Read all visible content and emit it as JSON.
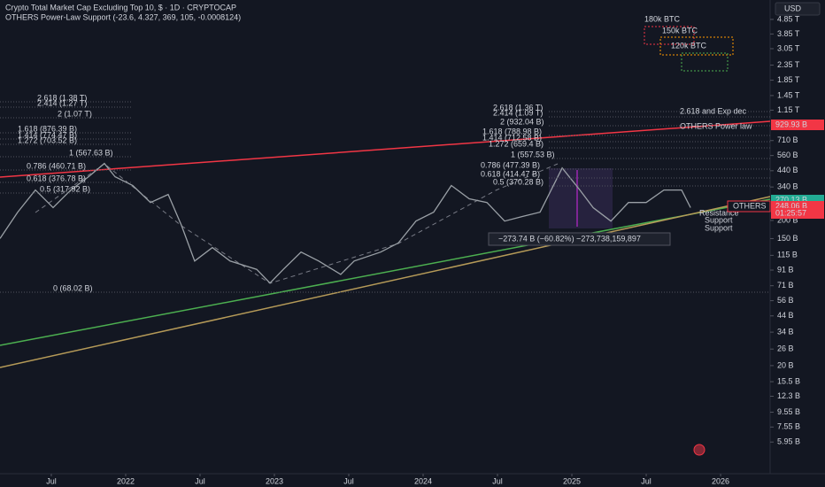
{
  "chart_data": {
    "type": "line",
    "title": "Crypto Total Market Cap Excluding Top 10, $ · 1D · CRYPTOCAP",
    "subtitle": "OTHERS Power-Law Support (-23.6, 4.327, 369, 105, -0.0008124)",
    "currency": "USD",
    "log_scale": true,
    "xlim": [
      2021.155,
      2026.333
    ],
    "ylim": [
      3.6,
      6600
    ],
    "xticks": [
      {
        "value": 2021.5,
        "label": "Jul"
      },
      2022,
      {
        "value": 2022.5,
        "label": "Jul"
      },
      2023,
      {
        "value": 2023.5,
        "label": "Jul"
      },
      2024,
      {
        "value": 2024.5,
        "label": "Jul"
      },
      2025,
      {
        "value": 2025.5,
        "label": "Jul"
      },
      2026
    ],
    "yticks": [
      {
        "value": 4850,
        "label": "4.85 T"
      },
      {
        "value": 3850,
        "label": "3.85 T"
      },
      {
        "value": 3050,
        "label": "3.05 T"
      },
      {
        "value": 2350,
        "label": "2.35 T"
      },
      {
        "value": 1850,
        "label": "1.85 T"
      },
      {
        "value": 1450,
        "label": "1.45 T"
      },
      {
        "value": 1150,
        "label": "1.15 T"
      },
      {
        "value": 710,
        "label": "710 B"
      },
      {
        "value": 560,
        "label": "560 B"
      },
      {
        "value": 440,
        "label": "440 B"
      },
      {
        "value": 340,
        "label": "340 B"
      },
      {
        "value": 200,
        "label": "200 B"
      },
      {
        "value": 150,
        "label": "150 B"
      },
      {
        "value": 115,
        "label": "115 B"
      },
      {
        "value": 91,
        "label": "91 B"
      },
      {
        "value": 71,
        "label": "71 B"
      },
      {
        "value": 56,
        "label": "56 B"
      },
      {
        "value": 44,
        "label": "44 B"
      },
      {
        "value": 34,
        "label": "34 B"
      },
      {
        "value": 26,
        "label": "26 B"
      },
      {
        "value": 20,
        "label": "20 B"
      },
      {
        "value": 15.5,
        "label": "15.5 B"
      },
      {
        "value": 12.3,
        "label": "12.3 B"
      },
      {
        "value": 9.55,
        "label": "9.55 B"
      },
      {
        "value": 7.55,
        "label": "7.55 B"
      },
      {
        "value": 5.95,
        "label": "5.95 B"
      }
    ],
    "series": [
      {
        "name": "OTHERS",
        "color": "#9aa0a6",
        "x": [
          2021.155,
          2021.274,
          2021.393,
          2021.512,
          2021.631,
          2021.75,
          2021.857,
          2021.929,
          2022.048,
          2022.167,
          2022.286,
          2022.375,
          2022.464,
          2022.583,
          2022.702,
          2022.881,
          2022.97,
          2023.06,
          2023.179,
          2023.298,
          2023.446,
          2023.536,
          2023.714,
          2023.833,
          2023.952,
          2024.071,
          2024.19,
          2024.31,
          2024.429,
          2024.548,
          2024.667,
          2024.786,
          2024.935,
          2025.054,
          2025.143,
          2025.262,
          2025.381,
          2025.5,
          2025.619,
          2025.738,
          2025.798
        ],
        "values": [
          150,
          228,
          324,
          245,
          324,
          400,
          494,
          400,
          348,
          266,
          302,
          185,
          105,
          130,
          105,
          92,
          74,
          92,
          121,
          105,
          85,
          105,
          121,
          140,
          198,
          228,
          348,
          282,
          266,
          198,
          213,
          228,
          460,
          324,
          245,
          198,
          266,
          266,
          324,
          324,
          245
        ]
      }
    ],
    "price_labels": [
      {
        "label": "929.93 B",
        "color": "#f23645"
      },
      {
        "label": "270.13 B",
        "color": "#22ab94"
      },
      {
        "label": "248.06 B",
        "color": "#f23645"
      },
      {
        "label": "01:25:57",
        "color": "#f23645"
      }
    ],
    "symbol_label": "OTHERS",
    "annotations": [
      "2.618 (1.38 T)",
      "2.414 (1.27 T)",
      "2 (1.07 T)",
      "1.618 (876.39 B)",
      "1.414 (774.47 B)",
      "1.272 (703.52 B)",
      "1 (567.63 B)",
      "0.786 (460.71 B)",
      "0.618 (376.78 B)",
      "0.5 (317.92 B)",
      "0 (68.02 B)",
      "2.618 (1.36 T)",
      "2.414 (1.09 T)",
      "2 (932.04 B)",
      "1.618 (788.98 B)",
      "1.414 (712.58 B)",
      "1.272 (659.4 B)",
      "1 (557.53 B)",
      "0.786 (477.39 B)",
      "0.618 (414.47 B)",
      "0.5 (370.28 B)",
      "180k BTC",
      "150k BTC",
      "120k BTC",
      "2.618 and Exp dec",
      "OTHERS Power law",
      "Resistance",
      "Support",
      "Support",
      "−273.74 B (−60.82%) −273,738,159,897"
    ]
  }
}
